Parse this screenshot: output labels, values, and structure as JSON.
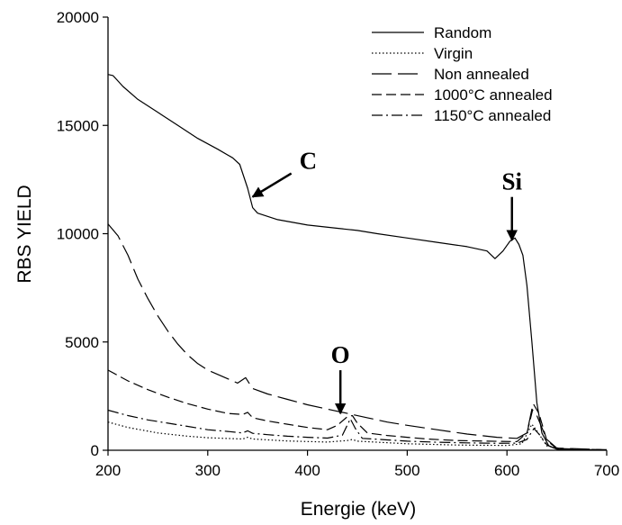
{
  "chart_data": {
    "type": "line",
    "xlabel": "Energie (keV)",
    "ylabel": "RBS YIELD",
    "xlim": [
      200,
      700
    ],
    "ylim": [
      0,
      20000
    ],
    "xticks": [
      200,
      300,
      400,
      500,
      600,
      700
    ],
    "yticks": [
      0,
      5000,
      10000,
      15000,
      20000
    ],
    "grid": false,
    "legend_position": "top-right",
    "series": [
      {
        "name": "Random",
        "style": "solid",
        "points": [
          [
            200,
            17350
          ],
          [
            205,
            17300
          ],
          [
            215,
            16800
          ],
          [
            230,
            16200
          ],
          [
            250,
            15600
          ],
          [
            270,
            15000
          ],
          [
            290,
            14400
          ],
          [
            310,
            13900
          ],
          [
            325,
            13500
          ],
          [
            332,
            13200
          ],
          [
            340,
            12100
          ],
          [
            345,
            11200
          ],
          [
            350,
            10950
          ],
          [
            370,
            10650
          ],
          [
            400,
            10400
          ],
          [
            430,
            10250
          ],
          [
            450,
            10150
          ],
          [
            470,
            10000
          ],
          [
            500,
            9800
          ],
          [
            530,
            9600
          ],
          [
            560,
            9400
          ],
          [
            580,
            9200
          ],
          [
            588,
            8850
          ],
          [
            596,
            9200
          ],
          [
            603,
            9650
          ],
          [
            608,
            9800
          ],
          [
            612,
            9500
          ],
          [
            616,
            9000
          ],
          [
            620,
            7600
          ],
          [
            625,
            5000
          ],
          [
            630,
            2200
          ],
          [
            635,
            800
          ],
          [
            642,
            200
          ],
          [
            650,
            50
          ],
          [
            670,
            20
          ],
          [
            700,
            20
          ]
        ]
      },
      {
        "name": "Virgin",
        "style": "dotted",
        "points": [
          [
            200,
            1300
          ],
          [
            220,
            1050
          ],
          [
            250,
            800
          ],
          [
            280,
            650
          ],
          [
            300,
            580
          ],
          [
            335,
            520
          ],
          [
            340,
            600
          ],
          [
            345,
            520
          ],
          [
            380,
            430
          ],
          [
            420,
            380
          ],
          [
            440,
            450
          ],
          [
            445,
            500
          ],
          [
            450,
            420
          ],
          [
            500,
            300
          ],
          [
            550,
            240
          ],
          [
            600,
            220
          ],
          [
            615,
            300
          ],
          [
            625,
            1200
          ],
          [
            630,
            900
          ],
          [
            640,
            200
          ],
          [
            660,
            30
          ],
          [
            700,
            10
          ]
        ]
      },
      {
        "name": "Non annealed",
        "style": "long-dash",
        "points": [
          [
            200,
            10450
          ],
          [
            210,
            9900
          ],
          [
            220,
            9000
          ],
          [
            230,
            7900
          ],
          [
            240,
            7000
          ],
          [
            250,
            6200
          ],
          [
            260,
            5500
          ],
          [
            270,
            4900
          ],
          [
            280,
            4400
          ],
          [
            290,
            4000
          ],
          [
            300,
            3700
          ],
          [
            315,
            3400
          ],
          [
            330,
            3100
          ],
          [
            338,
            3350
          ],
          [
            345,
            2850
          ],
          [
            360,
            2600
          ],
          [
            380,
            2350
          ],
          [
            400,
            2100
          ],
          [
            420,
            1900
          ],
          [
            440,
            1700
          ],
          [
            460,
            1500
          ],
          [
            480,
            1300
          ],
          [
            500,
            1150
          ],
          [
            530,
            950
          ],
          [
            560,
            750
          ],
          [
            590,
            600
          ],
          [
            610,
            550
          ],
          [
            620,
            800
          ],
          [
            625,
            1900
          ],
          [
            630,
            1600
          ],
          [
            640,
            500
          ],
          [
            650,
            100
          ],
          [
            700,
            20
          ]
        ]
      },
      {
        "name": "1000°C annealed",
        "style": "dash",
        "points": [
          [
            200,
            3700
          ],
          [
            220,
            3200
          ],
          [
            240,
            2800
          ],
          [
            260,
            2450
          ],
          [
            280,
            2150
          ],
          [
            300,
            1900
          ],
          [
            320,
            1700
          ],
          [
            335,
            1650
          ],
          [
            340,
            1750
          ],
          [
            345,
            1500
          ],
          [
            360,
            1350
          ],
          [
            380,
            1200
          ],
          [
            400,
            1050
          ],
          [
            420,
            950
          ],
          [
            430,
            1150
          ],
          [
            440,
            1550
          ],
          [
            445,
            1600
          ],
          [
            450,
            1250
          ],
          [
            460,
            800
          ],
          [
            480,
            680
          ],
          [
            500,
            600
          ],
          [
            520,
            520
          ],
          [
            550,
            450
          ],
          [
            580,
            420
          ],
          [
            610,
            400
          ],
          [
            620,
            800
          ],
          [
            627,
            2100
          ],
          [
            632,
            1700
          ],
          [
            640,
            450
          ],
          [
            650,
            80
          ],
          [
            700,
            20
          ]
        ]
      },
      {
        "name": "1150°C annealed",
        "style": "dash-dot",
        "points": [
          [
            200,
            1850
          ],
          [
            220,
            1600
          ],
          [
            240,
            1400
          ],
          [
            260,
            1250
          ],
          [
            280,
            1100
          ],
          [
            300,
            950
          ],
          [
            320,
            870
          ],
          [
            335,
            800
          ],
          [
            340,
            900
          ],
          [
            345,
            780
          ],
          [
            360,
            720
          ],
          [
            380,
            650
          ],
          [
            400,
            600
          ],
          [
            420,
            560
          ],
          [
            435,
            700
          ],
          [
            443,
            1450
          ],
          [
            448,
            1000
          ],
          [
            455,
            550
          ],
          [
            480,
            480
          ],
          [
            500,
            420
          ],
          [
            530,
            370
          ],
          [
            560,
            340
          ],
          [
            590,
            320
          ],
          [
            610,
            330
          ],
          [
            620,
            500
          ],
          [
            627,
            1000
          ],
          [
            632,
            750
          ],
          [
            640,
            250
          ],
          [
            650,
            50
          ],
          [
            700,
            10
          ]
        ]
      }
    ],
    "annotations": [
      {
        "label": "C",
        "x": 345,
        "y": 11700
      },
      {
        "label": "Si",
        "x": 605,
        "y": 9700
      },
      {
        "label": "O",
        "x": 433,
        "y": 1700
      }
    ]
  }
}
